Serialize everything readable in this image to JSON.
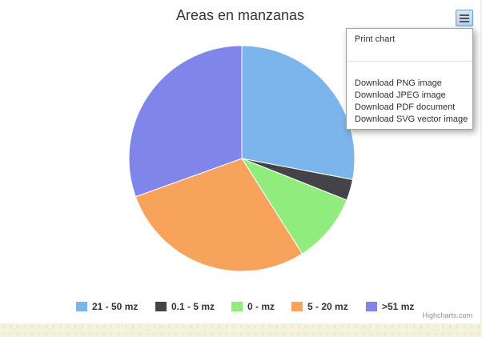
{
  "chart_data": {
    "type": "pie",
    "title": "Areas en manzanas",
    "slices": [
      {
        "name": "21 - 50 mz",
        "value": 28.0,
        "color": "#7cb5ec"
      },
      {
        "name": "0.1 - 5 mz",
        "value": 3.0,
        "color": "#434348"
      },
      {
        "name": "0 - mz",
        "value": 10.0,
        "color": "#90ed7d"
      },
      {
        "name": "5 - 20 mz",
        "value": 28.5,
        "color": "#f7a35c"
      },
      {
        "name": ">51 mz",
        "value": 30.5,
        "color": "#8085e9"
      }
    ],
    "legend": {
      "placement": "bottom"
    }
  },
  "export_menu": {
    "items": [
      "Print chart",
      "Download PNG image",
      "Download JPEG image",
      "Download PDF document",
      "Download SVG vector image"
    ],
    "button_icon": "hamburger-menu-icon"
  },
  "credits": "Highcharts.com",
  "colors": {
    "background": "#ffffff",
    "page_background": "#fbf9ee",
    "slice_border": "#ffffff"
  }
}
